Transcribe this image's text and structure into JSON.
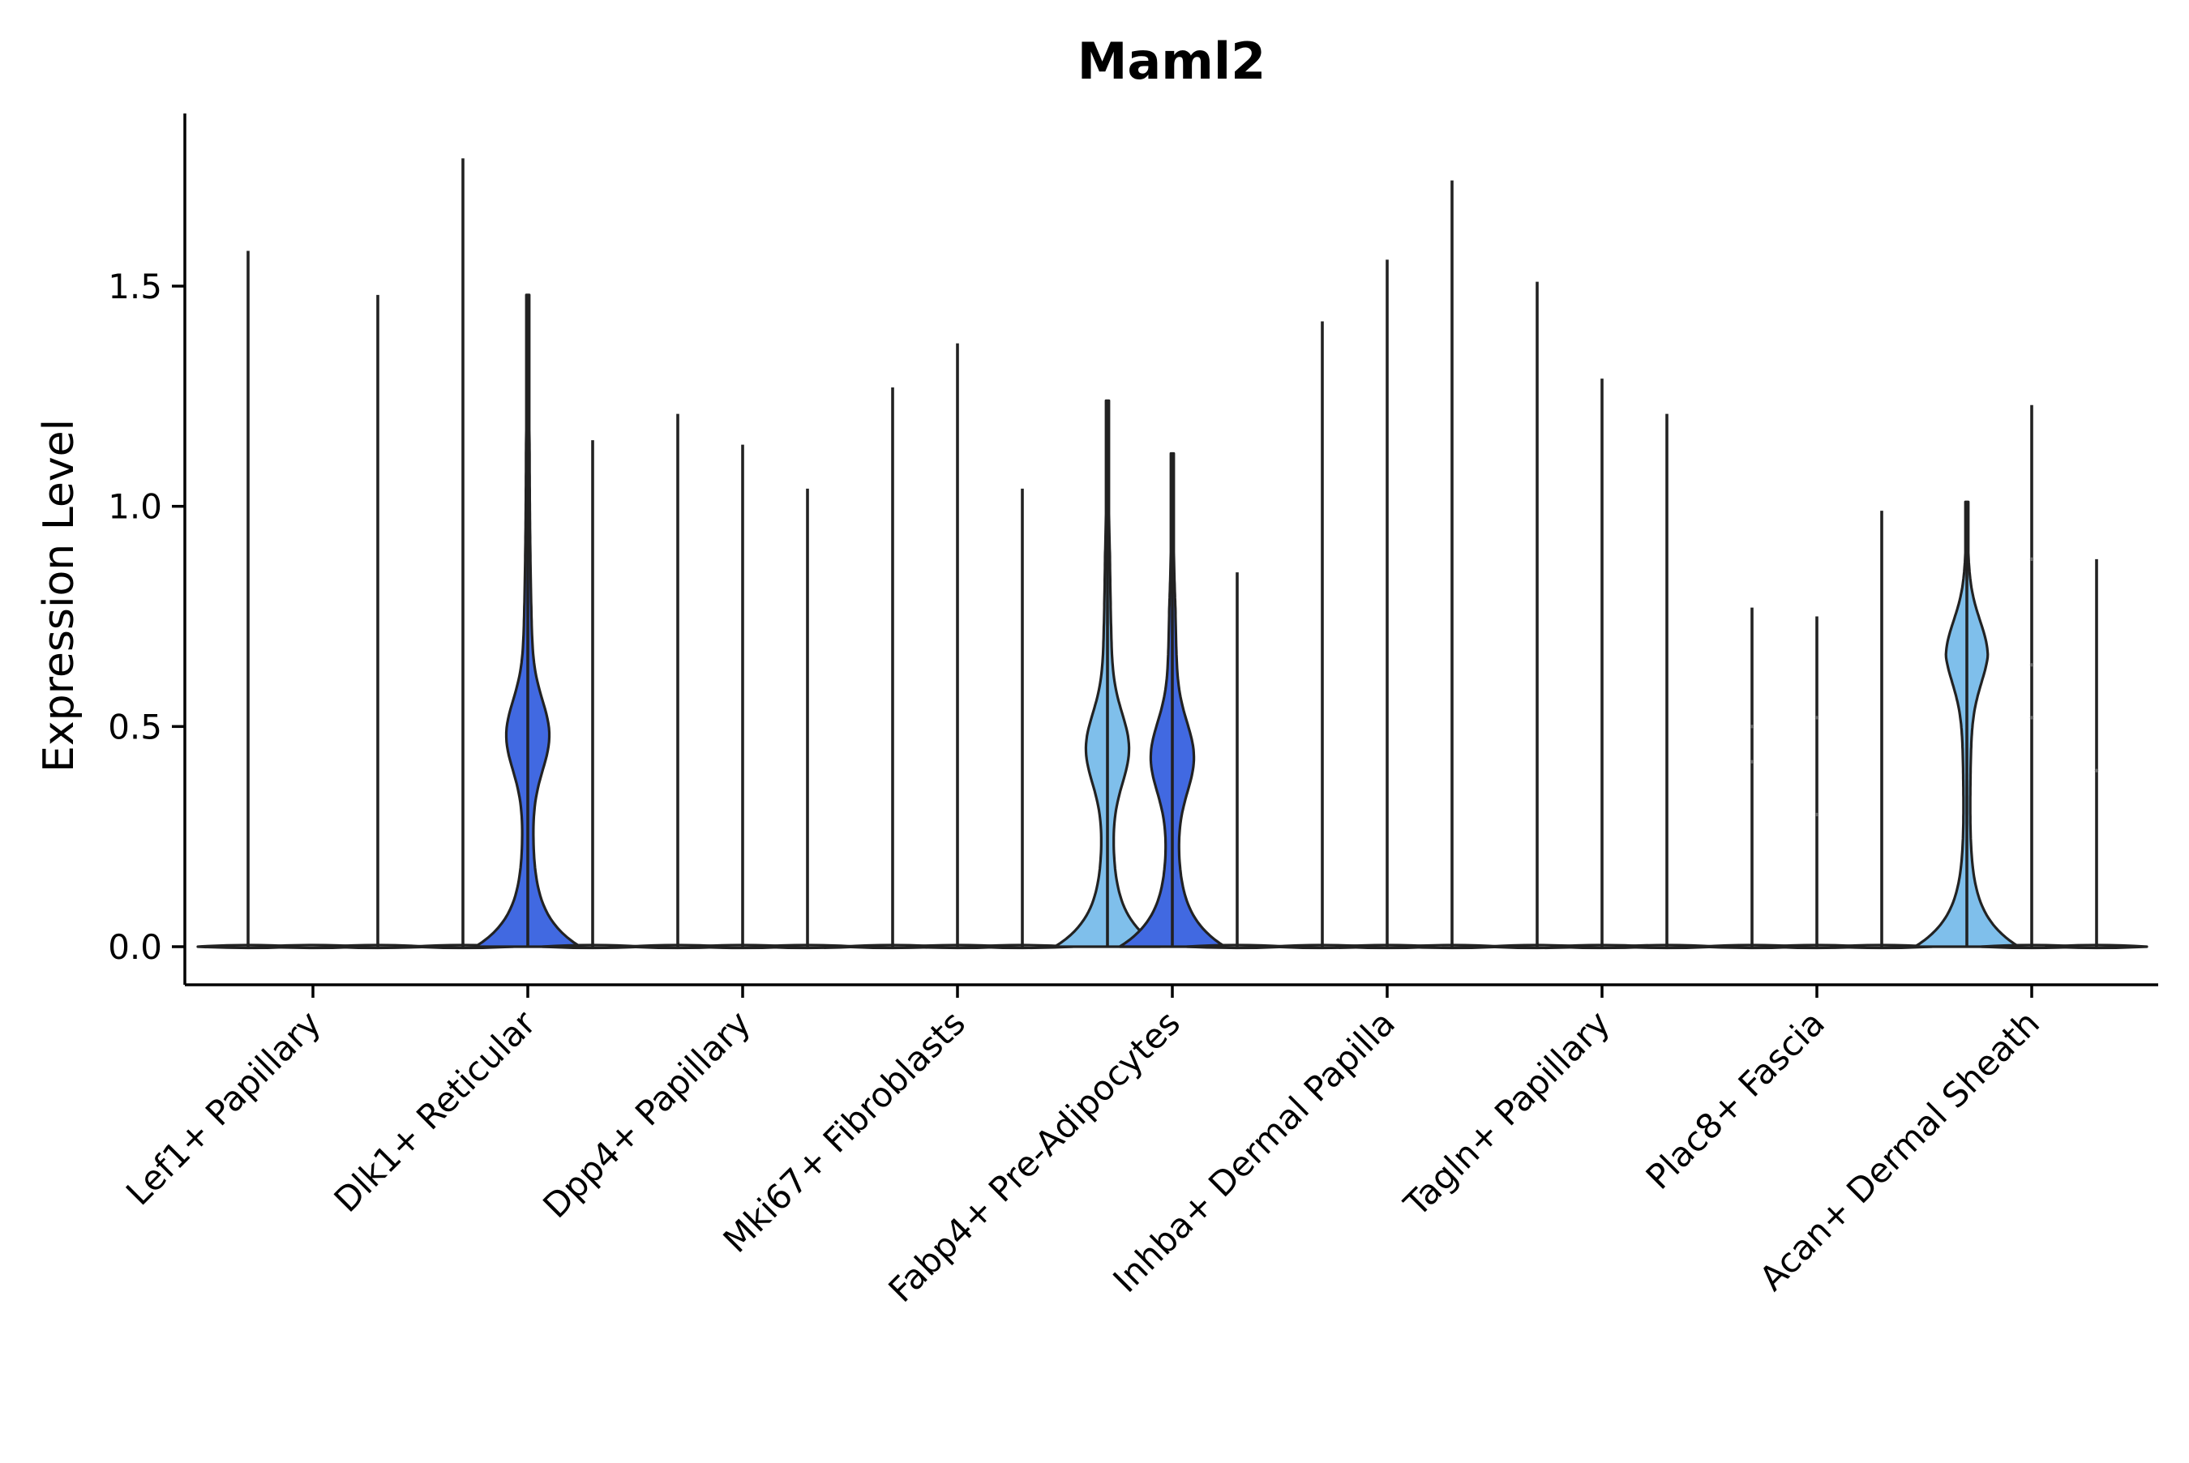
{
  "chart_data": {
    "type": "violin",
    "title": "Maml2",
    "xlabel": "",
    "ylabel": "Expression Level",
    "ylim": [
      -0.09,
      1.9
    ],
    "yticks": [
      0.0,
      0.5,
      1.0,
      1.5
    ],
    "ytick_labels": [
      "0.0",
      "0.5",
      "1.0",
      "1.5"
    ],
    "grid": false,
    "legend": "none",
    "categories": [
      "Lef1+ Papillary",
      "Dlk1+ Reticular",
      "Dpp4+ Papillary",
      "Mki67+ Fibroblasts",
      "Fabp4+ Pre-Adipocytes",
      "Inhba+ Dermal Papilla",
      "Tagln+ Papillary",
      "Plac8+ Fascia",
      "Acan+ Dermal Sheath"
    ],
    "groups_per_category": 3,
    "colors": {
      "light_blue": "#7FBFEB",
      "dark_blue": "#4169E1",
      "outline": "#222222"
    },
    "violins": [
      {
        "category": 0,
        "group": 0,
        "max": 1.58,
        "shape": "flat"
      },
      {
        "category": 0,
        "group": 1,
        "max": 0.0,
        "shape": "flat"
      },
      {
        "category": 0,
        "group": 2,
        "max": 1.48,
        "shape": "flat"
      },
      {
        "category": 1,
        "group": 0,
        "max": 1.79,
        "shape": "flat"
      },
      {
        "category": 1,
        "group": 1,
        "max": 1.48,
        "shape": "expr",
        "color": "dark_blue",
        "mode": 0.48
      },
      {
        "category": 1,
        "group": 2,
        "max": 1.15,
        "shape": "flat"
      },
      {
        "category": 2,
        "group": 0,
        "max": 1.21,
        "shape": "flat"
      },
      {
        "category": 2,
        "group": 1,
        "max": 1.14,
        "shape": "flat"
      },
      {
        "category": 2,
        "group": 2,
        "max": 1.04,
        "shape": "flat"
      },
      {
        "category": 3,
        "group": 0,
        "max": 1.27,
        "shape": "flat"
      },
      {
        "category": 3,
        "group": 1,
        "max": 1.37,
        "shape": "flat"
      },
      {
        "category": 3,
        "group": 2,
        "max": 1.04,
        "shape": "flat"
      },
      {
        "category": 4,
        "group": 0,
        "max": 1.24,
        "shape": "expr",
        "color": "light_blue",
        "mode": 0.45
      },
      {
        "category": 4,
        "group": 1,
        "max": 1.12,
        "shape": "expr",
        "color": "dark_blue",
        "mode": 0.43
      },
      {
        "category": 4,
        "group": 2,
        "max": 0.85,
        "shape": "flat"
      },
      {
        "category": 5,
        "group": 0,
        "max": 1.42,
        "shape": "flat"
      },
      {
        "category": 5,
        "group": 1,
        "max": 1.56,
        "shape": "flat"
      },
      {
        "category": 5,
        "group": 2,
        "max": 1.74,
        "shape": "flat"
      },
      {
        "category": 6,
        "group": 0,
        "max": 1.51,
        "shape": "flat"
      },
      {
        "category": 6,
        "group": 1,
        "max": 1.29,
        "shape": "flat"
      },
      {
        "category": 6,
        "group": 2,
        "max": 1.21,
        "shape": "flat"
      },
      {
        "category": 7,
        "group": 0,
        "max": 0.77,
        "shape": "flat"
      },
      {
        "category": 7,
        "group": 1,
        "max": 0.75,
        "shape": "flat"
      },
      {
        "category": 7,
        "group": 2,
        "max": 0.99,
        "shape": "flat"
      },
      {
        "category": 8,
        "group": 0,
        "max": 1.01,
        "shape": "expr",
        "color": "light_blue",
        "mode": 0.68
      },
      {
        "category": 8,
        "group": 1,
        "max": 1.23,
        "shape": "flat"
      },
      {
        "category": 8,
        "group": 2,
        "max": 0.88,
        "shape": "flat"
      }
    ]
  }
}
